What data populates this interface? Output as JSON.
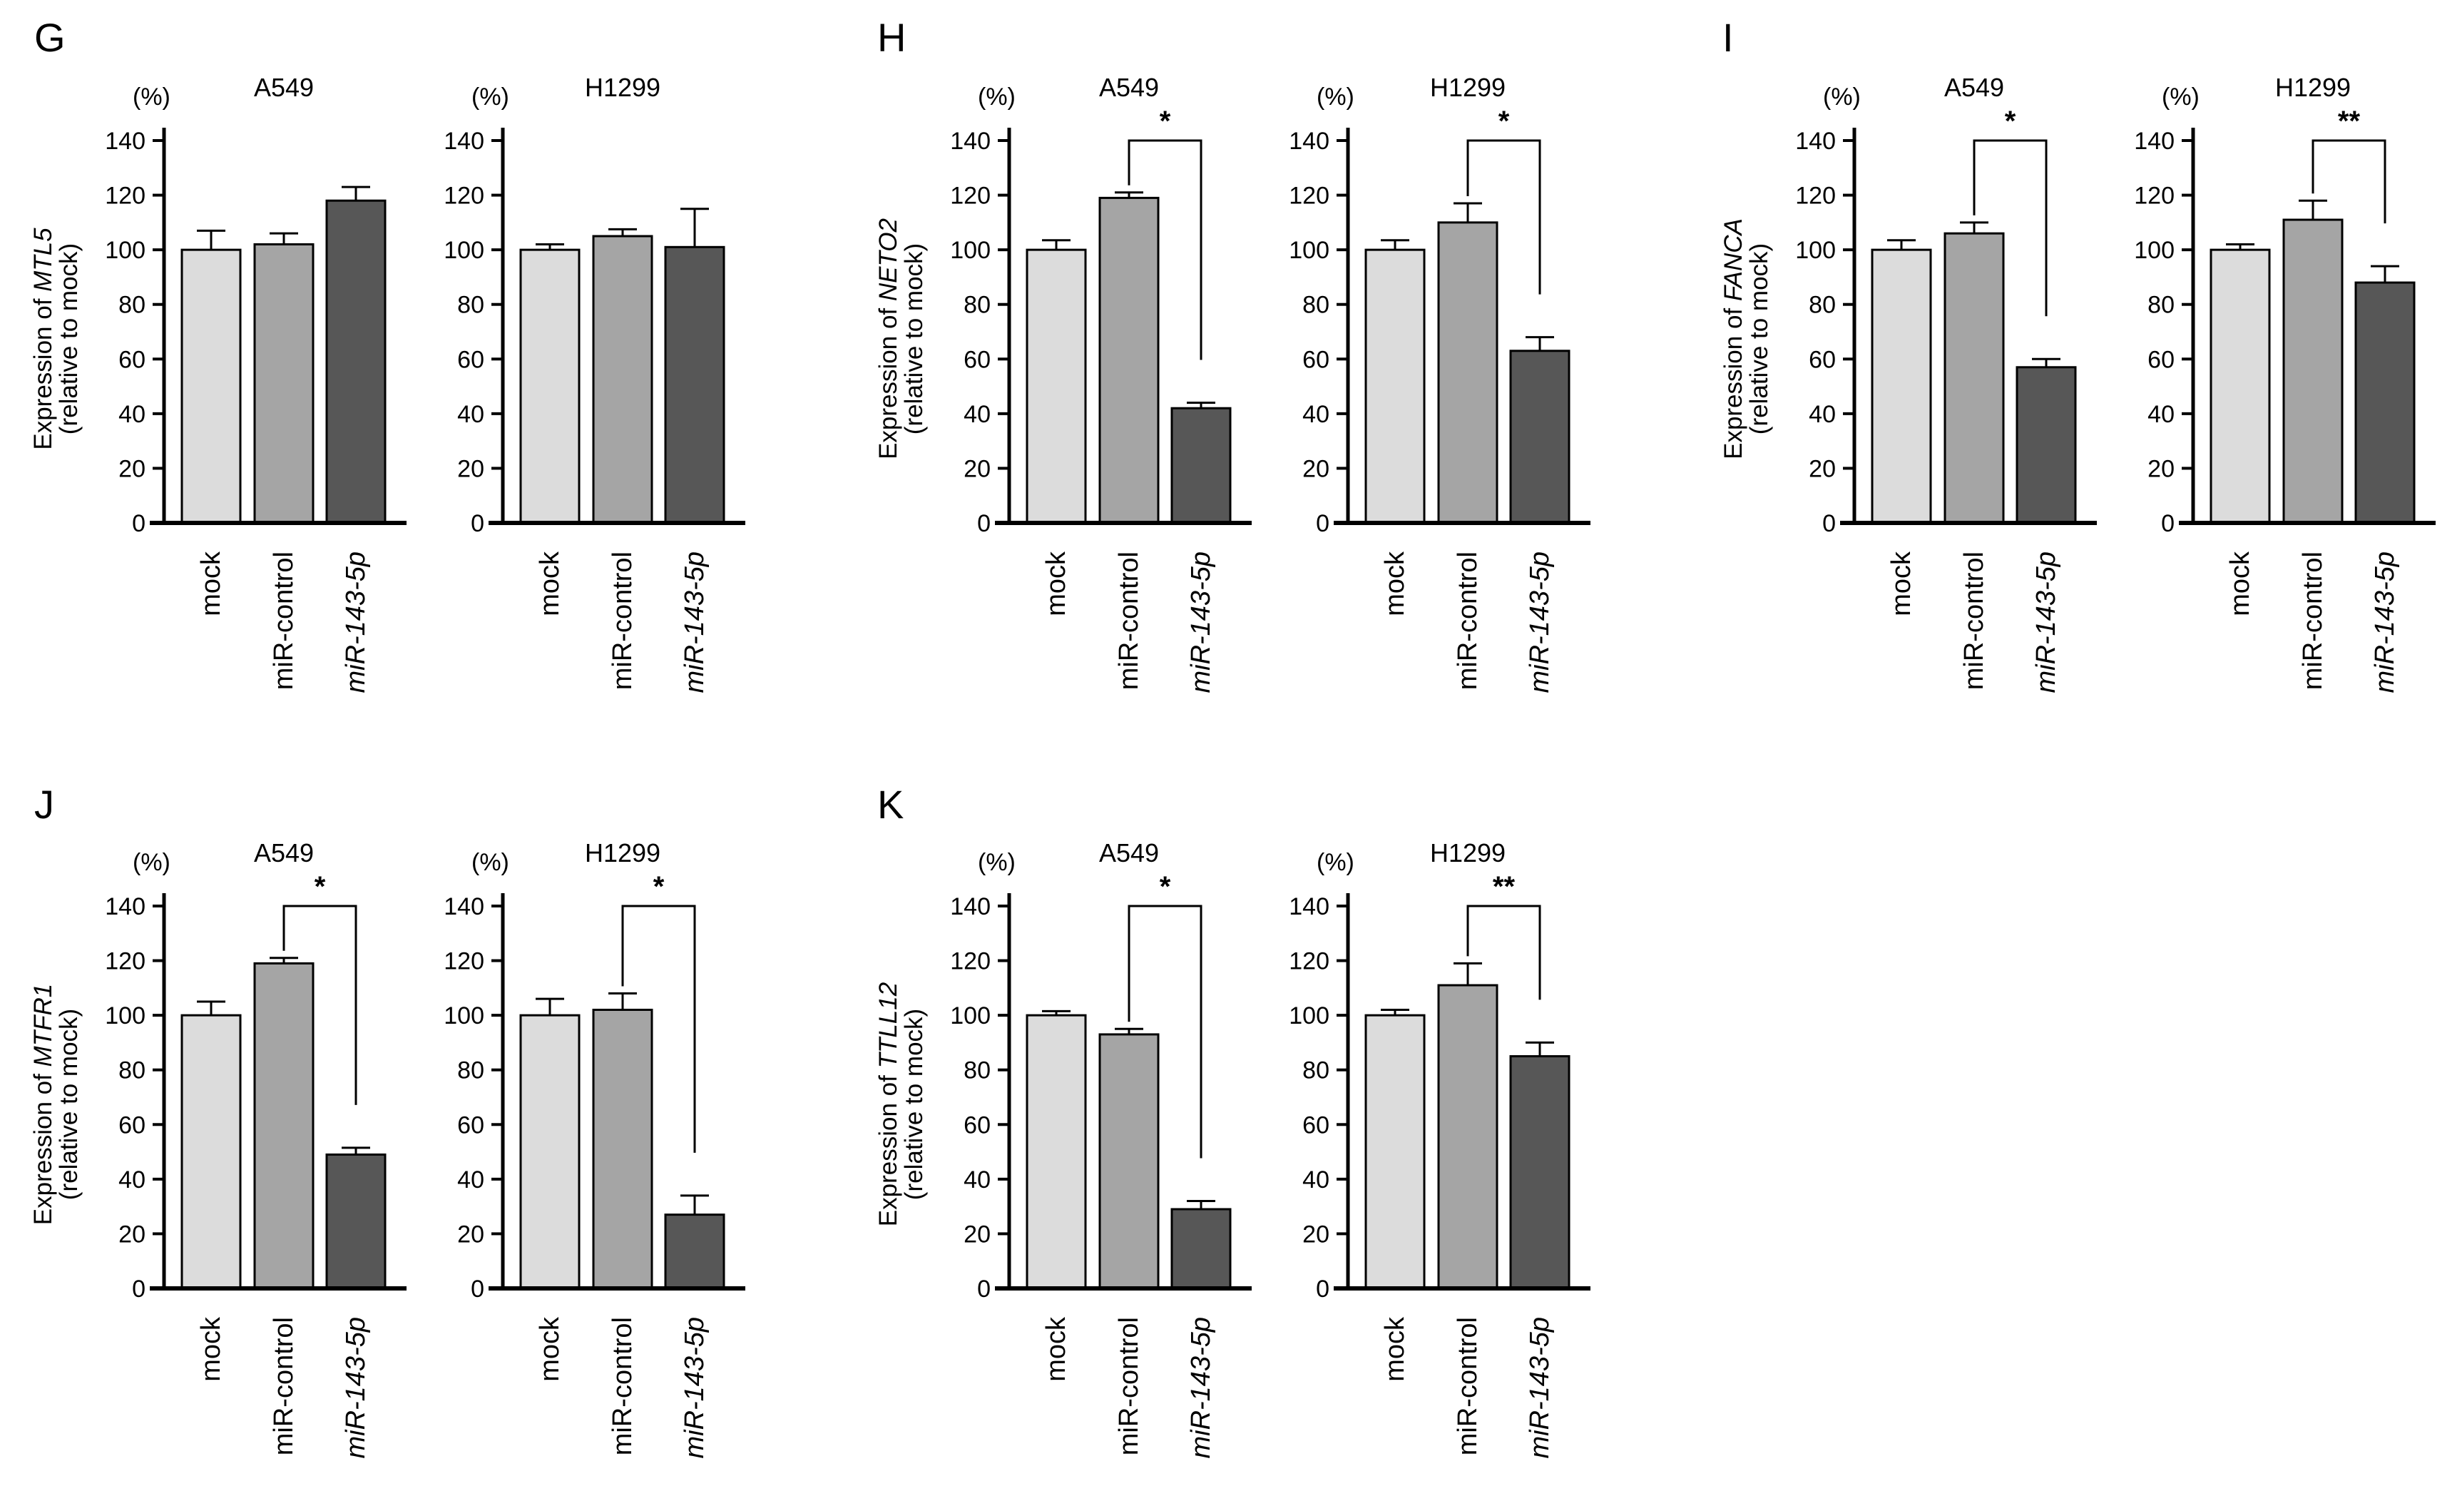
{
  "colors": {
    "mock": "#dcdcdc",
    "control": "#a5a5a5",
    "mir": "#575757",
    "stroke": "#000000"
  },
  "common": {
    "unit": "(%)",
    "ylabel_prefix": "Expression of ",
    "ylabel_line2": "(relative to mock)",
    "yticks": [
      0,
      20,
      40,
      60,
      80,
      100,
      120,
      140
    ],
    "categories": [
      "mock",
      "miR-control",
      "miR-143-5p"
    ]
  },
  "chart_data": [
    {
      "panel": "G",
      "gene": "MTL5",
      "type": "bar",
      "ylabel": "Expression of MTL5 (relative to mock)",
      "ylim": [
        0,
        140
      ],
      "cells": [
        {
          "name": "A549",
          "values": [
            100,
            102,
            118
          ],
          "errors": [
            7,
            4,
            5
          ],
          "sig": null
        },
        {
          "name": "H1299",
          "values": [
            100,
            105,
            101
          ],
          "errors": [
            2,
            2.5,
            14
          ],
          "sig": null
        }
      ]
    },
    {
      "panel": "H",
      "gene": "NETO2",
      "type": "bar",
      "ylabel": "Expression of NETO2 (relative to mock)",
      "ylim": [
        0,
        140
      ],
      "cells": [
        {
          "name": "A549",
          "values": [
            100,
            119,
            42
          ],
          "errors": [
            3.5,
            2,
            2
          ],
          "sig": "*"
        },
        {
          "name": "H1299",
          "values": [
            100,
            110,
            63
          ],
          "errors": [
            3.5,
            7,
            5
          ],
          "sig": "*"
        }
      ]
    },
    {
      "panel": "I",
      "gene": "FANCA",
      "type": "bar",
      "ylabel": "Expression of FANCA (relative to mock)",
      "ylim": [
        0,
        140
      ],
      "cells": [
        {
          "name": "A549",
          "values": [
            100,
            106,
            57
          ],
          "errors": [
            3.5,
            4,
            3
          ],
          "sig": "*"
        },
        {
          "name": "H1299",
          "values": [
            100,
            111,
            88
          ],
          "errors": [
            2,
            7,
            6
          ],
          "sig": "**"
        }
      ]
    },
    {
      "panel": "J",
      "gene": "MTFR1",
      "type": "bar",
      "ylabel": "Expression of MTFR1 (relative to mock)",
      "ylim": [
        0,
        140
      ],
      "cells": [
        {
          "name": "A549",
          "values": [
            100,
            119,
            49
          ],
          "errors": [
            5,
            2,
            2.5
          ],
          "sig": "*"
        },
        {
          "name": "H1299",
          "values": [
            100,
            102,
            27
          ],
          "errors": [
            6,
            6,
            7
          ],
          "sig": "*"
        }
      ]
    },
    {
      "panel": "K",
      "gene": "TTLL12",
      "type": "bar",
      "ylabel": "Expression of TTLL12 (relative to mock)",
      "ylim": [
        0,
        140
      ],
      "cells": [
        {
          "name": "A549",
          "values": [
            100,
            93,
            29
          ],
          "errors": [
            1.5,
            2,
            3
          ],
          "sig": "*"
        },
        {
          "name": "H1299",
          "values": [
            100,
            111,
            85
          ],
          "errors": [
            2,
            8,
            5
          ],
          "sig": "**"
        }
      ]
    }
  ]
}
